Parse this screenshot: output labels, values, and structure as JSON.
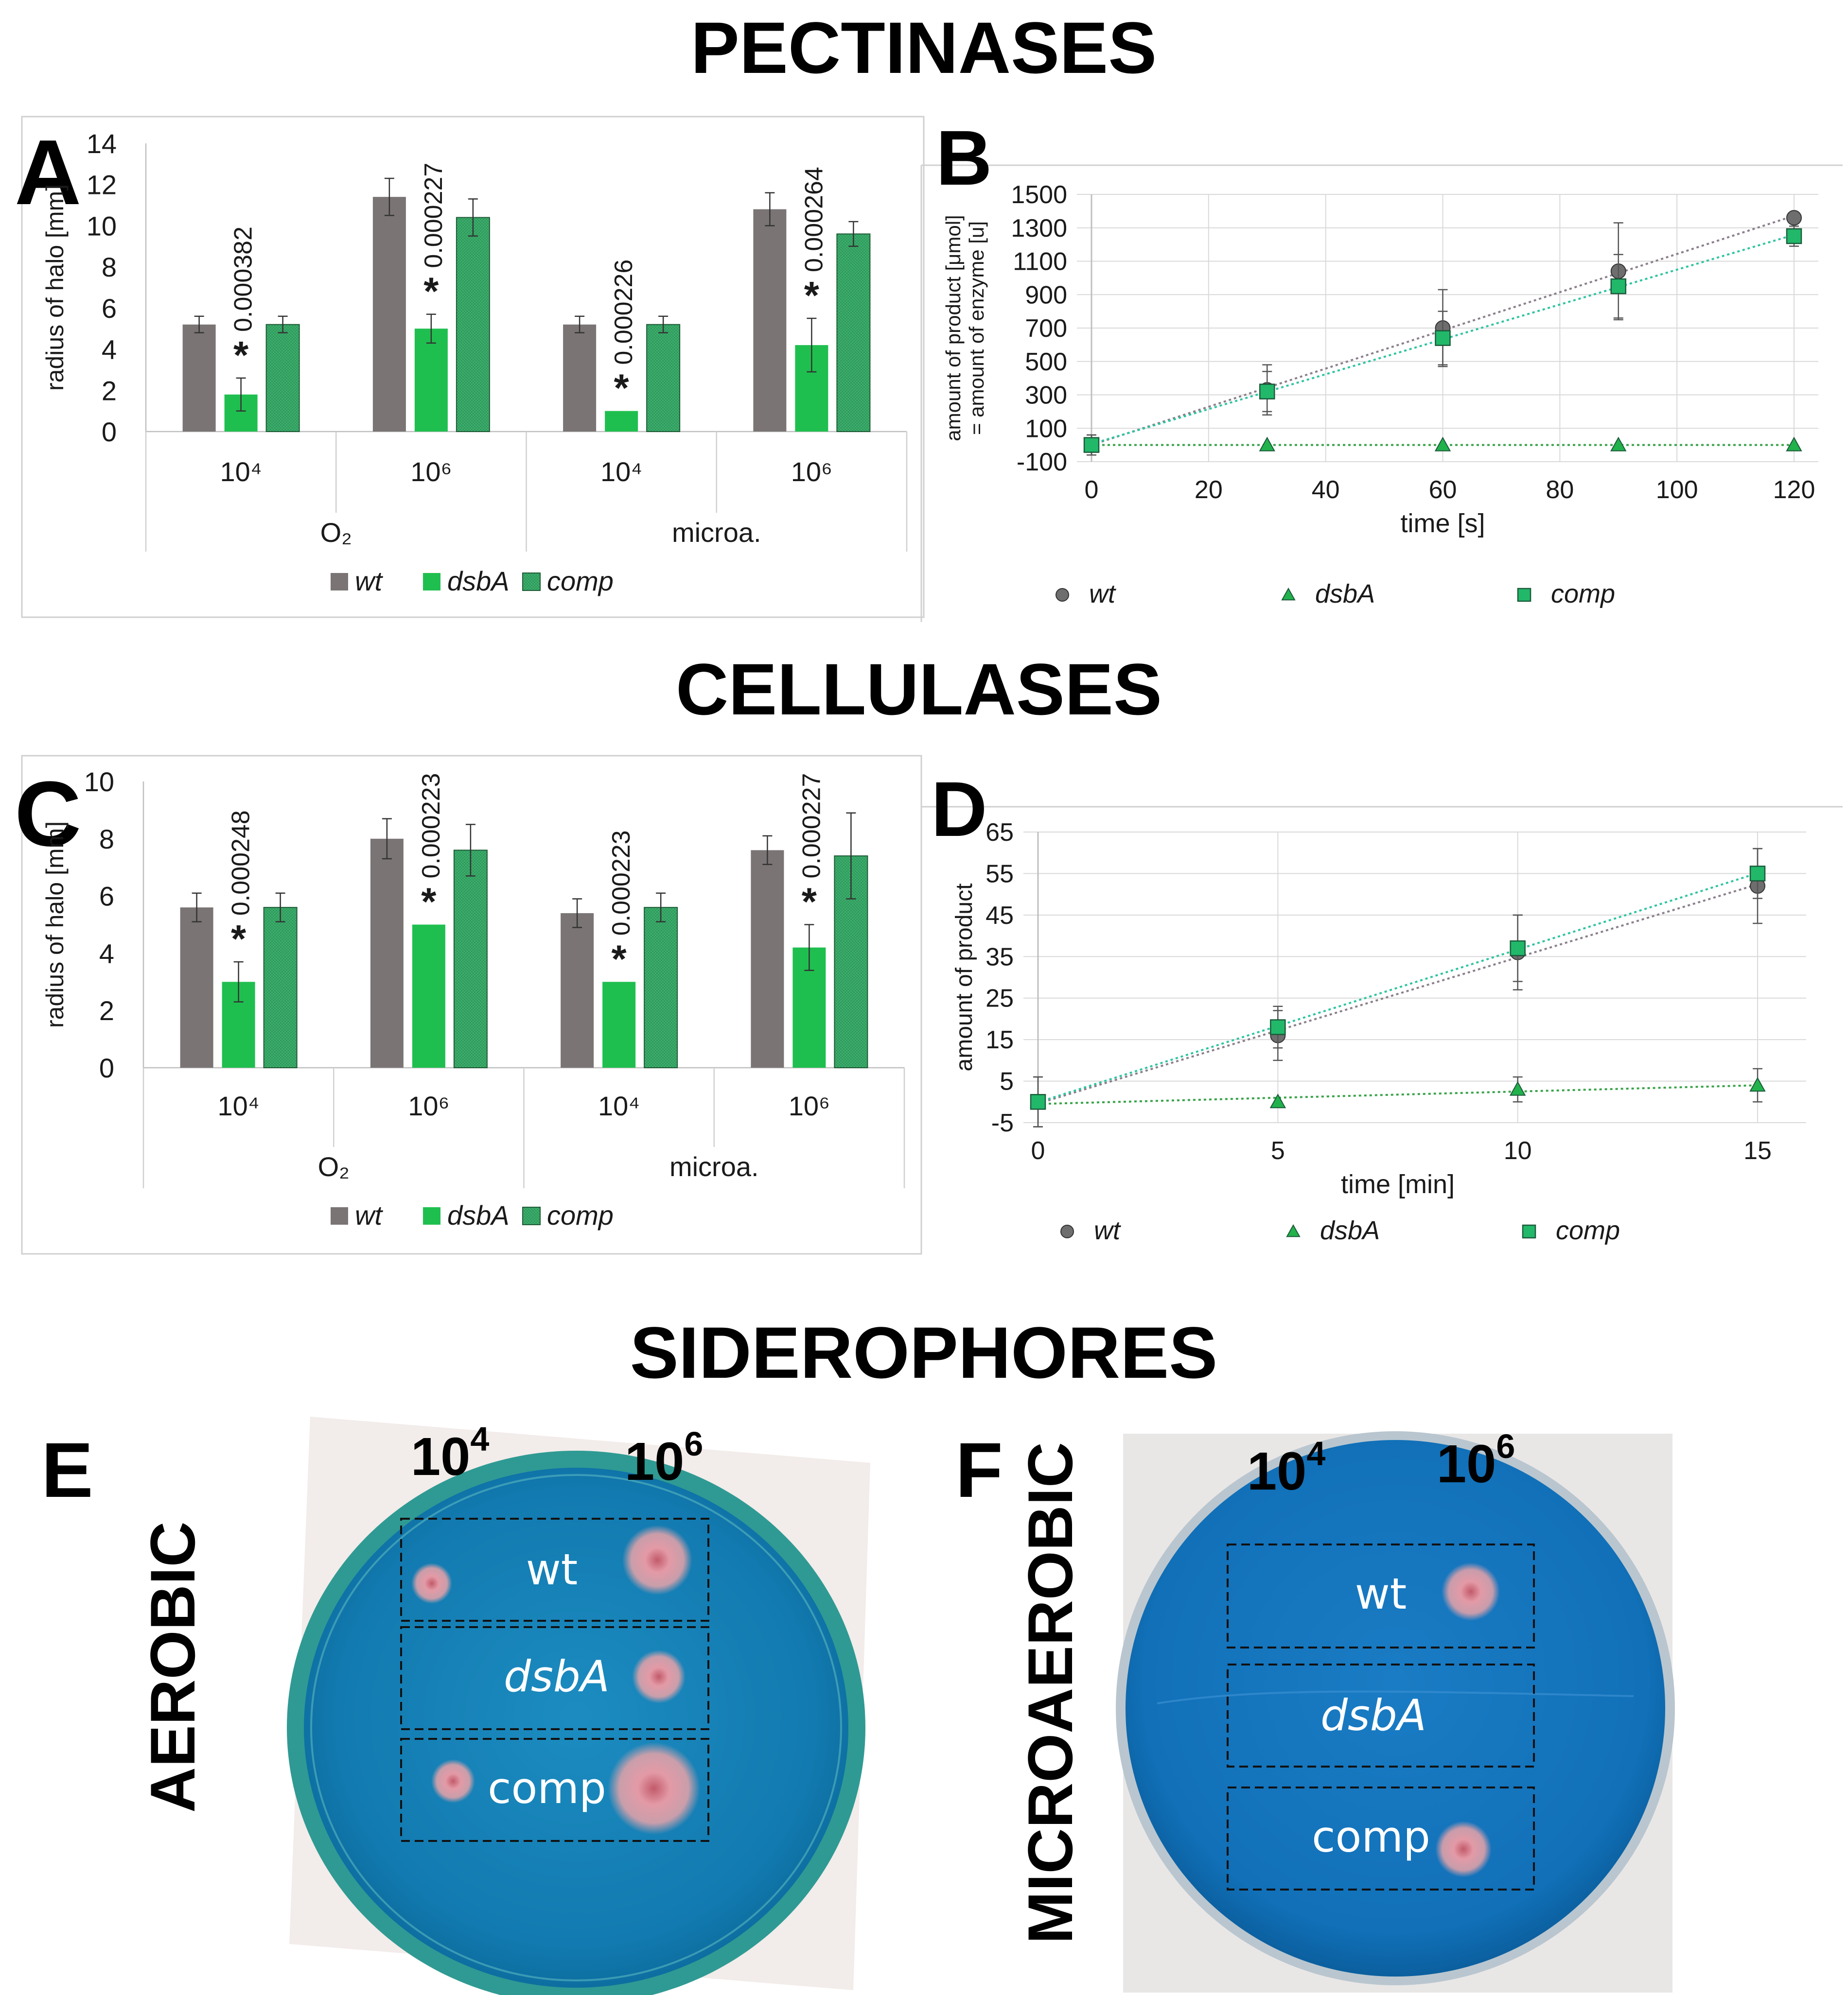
{
  "titles": {
    "pectinases": "PECTINASES",
    "cellulases": "CELLULASES",
    "siderophores": "SIDEROPHORES"
  },
  "legend": {
    "wt": "wt",
    "dsbA": "dsbA",
    "comp": "comp"
  },
  "colors": {
    "wt": "#7a7474",
    "dsbA": "#1fbf4f",
    "comp": "#2e9a5c",
    "comp_line": "#2ec4a0",
    "wt_line": "#8a7f8a",
    "dsbA_line": "#3aa34a",
    "plate_blue": "#0f7fb5",
    "halo": "#e8a3a3"
  },
  "chart_data": [
    {
      "panel": "A",
      "type": "bar",
      "ylabel": "radius of halo [mm]",
      "ylim": [
        0,
        14
      ],
      "yticks": [
        0,
        2,
        4,
        6,
        8,
        10,
        12,
        14
      ],
      "categories": [
        "10⁴",
        "10⁶",
        "10⁴",
        "10⁶"
      ],
      "groups": [
        "O₂",
        "microa."
      ],
      "legend_position": "bottom",
      "grid": false,
      "series": [
        {
          "name": "wt",
          "values": [
            5.2,
            11.4,
            5.2,
            10.8
          ],
          "errors": [
            0.4,
            0.9,
            0.4,
            0.8
          ]
        },
        {
          "name": "dsbA",
          "values": [
            1.8,
            5.0,
            1.0,
            4.2
          ],
          "errors": [
            0.8,
            0.7,
            0.0,
            1.3
          ]
        },
        {
          "name": "comp",
          "values": [
            5.2,
            10.4,
            5.2,
            9.6
          ],
          "errors": [
            0.4,
            0.9,
            0.4,
            0.6
          ]
        }
      ],
      "annotations": [
        {
          "category": 0,
          "pvalue": "0.000382",
          "star": "*"
        },
        {
          "category": 1,
          "pvalue": "0.000227",
          "star": "*"
        },
        {
          "category": 2,
          "pvalue": "0.000226",
          "star": "*"
        },
        {
          "category": 3,
          "pvalue": "0.000264",
          "star": "*"
        }
      ]
    },
    {
      "panel": "B",
      "type": "scatter",
      "ylabel_line1": "amount of product [μmol]",
      "ylabel_line2": "= amount of enzyme [u]",
      "xlabel": "time [s]",
      "xlim": [
        0,
        120
      ],
      "ylim": [
        -100,
        1500
      ],
      "xticks": [
        0,
        20,
        40,
        60,
        80,
        100,
        120
      ],
      "yticks": [
        -100,
        100,
        300,
        500,
        700,
        900,
        1100,
        1300,
        1500
      ],
      "grid": true,
      "trendlines": true,
      "legend_position": "bottom",
      "series": [
        {
          "name": "wt",
          "marker": "circle",
          "x": [
            0,
            30,
            60,
            90,
            120
          ],
          "y": [
            0,
            330,
            700,
            1040,
            1360
          ],
          "errors": [
            60,
            150,
            230,
            290,
            0
          ]
        },
        {
          "name": "dsbA",
          "marker": "triangle",
          "x": [
            0,
            30,
            60,
            90,
            120
          ],
          "y": [
            0,
            0,
            0,
            0,
            0
          ],
          "errors": [
            0,
            0,
            0,
            0,
            0
          ]
        },
        {
          "name": "comp",
          "marker": "square",
          "x": [
            0,
            30,
            60,
            90,
            120
          ],
          "y": [
            0,
            320,
            640,
            950,
            1250
          ],
          "errors": [
            60,
            120,
            160,
            190,
            60
          ]
        }
      ]
    },
    {
      "panel": "C",
      "type": "bar",
      "ylabel": "radius of halo [mm]",
      "ylim": [
        0,
        10
      ],
      "yticks": [
        0,
        2,
        4,
        6,
        8,
        10
      ],
      "categories": [
        "10⁴",
        "10⁶",
        "10⁴",
        "10⁶"
      ],
      "groups": [
        "O₂",
        "microa."
      ],
      "legend_position": "bottom",
      "grid": false,
      "series": [
        {
          "name": "wt",
          "values": [
            5.6,
            8.0,
            5.4,
            7.6
          ],
          "errors": [
            0.5,
            0.7,
            0.5,
            0.5
          ]
        },
        {
          "name": "dsbA",
          "values": [
            3.0,
            5.0,
            3.0,
            4.2
          ],
          "errors": [
            0.7,
            0.0,
            0.0,
            0.8
          ]
        },
        {
          "name": "comp",
          "values": [
            5.6,
            7.6,
            5.6,
            7.4
          ],
          "errors": [
            0.5,
            0.9,
            0.5,
            1.5
          ]
        }
      ],
      "annotations": [
        {
          "category": 0,
          "pvalue": "0.000248",
          "star": "*"
        },
        {
          "category": 1,
          "pvalue": "0.000223",
          "star": "*"
        },
        {
          "category": 2,
          "pvalue": "0.000223",
          "star": "*"
        },
        {
          "category": 3,
          "pvalue": "0.000227",
          "star": "*"
        }
      ]
    },
    {
      "panel": "D",
      "type": "scatter",
      "ylabel_line1": "amount of product",
      "ylabel_line2": "",
      "xlabel": "time [min]",
      "xlim": [
        0,
        15
      ],
      "ylim": [
        -5,
        65
      ],
      "xticks": [
        0,
        5,
        10,
        15
      ],
      "yticks": [
        -5,
        5,
        15,
        25,
        35,
        45,
        55,
        65
      ],
      "grid": true,
      "trendlines": true,
      "legend_position": "bottom",
      "series": [
        {
          "name": "wt",
          "marker": "circle",
          "x": [
            0,
            5,
            10,
            15
          ],
          "y": [
            0,
            16,
            36,
            52
          ],
          "errors": [
            6,
            6,
            9,
            9
          ]
        },
        {
          "name": "dsbA",
          "marker": "triangle",
          "x": [
            0,
            5,
            10,
            15
          ],
          "y": [
            0,
            0,
            3,
            4
          ],
          "errors": [
            0,
            0,
            3,
            4
          ]
        },
        {
          "name": "comp",
          "marker": "square",
          "x": [
            0,
            5,
            10,
            15
          ],
          "y": [
            0,
            18,
            37,
            55
          ],
          "errors": [
            6,
            5,
            8,
            6
          ]
        }
      ]
    }
  ],
  "plates": {
    "E": {
      "letter": "E",
      "orientation": "AEROBIC",
      "dil_low": "10",
      "dil_low_exp": "4",
      "dil_high": "10",
      "dil_high_exp": "6",
      "rows": [
        "wt",
        "dsbA",
        "comp"
      ]
    },
    "F": {
      "letter": "F",
      "orientation": "MICROAEROBIC",
      "dil_low": "10",
      "dil_low_exp": "4",
      "dil_high": "10",
      "dil_high_exp": "6",
      "rows": [
        "wt",
        "dsbA",
        "comp"
      ]
    }
  },
  "panel_letters": {
    "A": "A",
    "B": "B",
    "C": "C",
    "D": "D"
  }
}
